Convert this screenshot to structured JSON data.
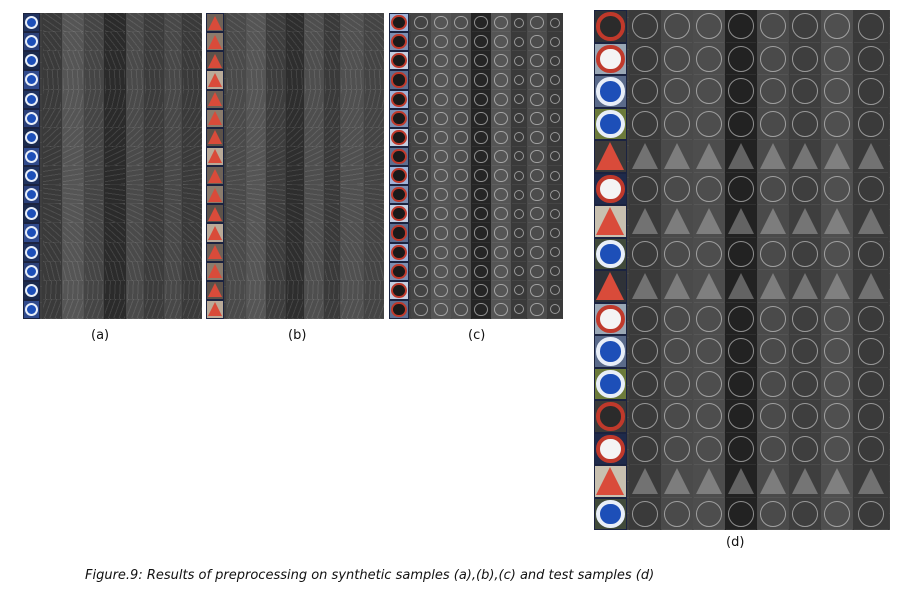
{
  "figure": {
    "caption": "Figure.9: Results of preprocessing on synthetic samples (a),(b),(c) and test samples (d)",
    "panels": [
      {
        "id": "a",
        "label": "(a)",
        "thumb_kind": "blue-arrow",
        "rows": 16
      },
      {
        "id": "b",
        "label": "(b)",
        "thumb_kind": "warning-triangle",
        "rows": 16
      },
      {
        "id": "c",
        "label": "(c)",
        "thumb_kind": "no-entry",
        "rows": 16
      },
      {
        "id": "d",
        "label": "(d)",
        "thumb_kind": "mixed-test",
        "rows": 16
      }
    ]
  }
}
